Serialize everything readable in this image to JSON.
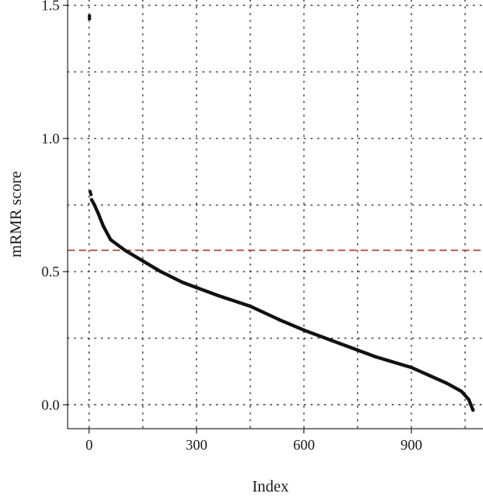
{
  "chart_data": {
    "type": "scatter",
    "title": "",
    "xlabel": "Index",
    "ylabel": "mRMR score",
    "xlim": [
      -60,
      1100
    ],
    "ylim": [
      -0.09,
      1.52
    ],
    "x_ticks": [
      0,
      300,
      600,
      900
    ],
    "x_tick_labels": [
      "0",
      "300",
      "600",
      "900"
    ],
    "y_ticks": [
      0.0,
      0.5,
      1.0,
      1.5
    ],
    "y_tick_labels": [
      "0.0",
      "0.5",
      "1.0",
      "1.5"
    ],
    "grid": true,
    "grid_x": [
      0,
      150,
      300,
      450,
      600,
      750,
      900,
      1050
    ],
    "grid_y": [
      0.0,
      0.25,
      0.5,
      0.75,
      1.0,
      1.25,
      1.5
    ],
    "threshold": 0.58,
    "colors": {
      "points": "#111111",
      "threshold": "#b03a2e",
      "grid": "#333333"
    },
    "outlier_points": [
      {
        "x": 1,
        "y": 1.46
      },
      {
        "x": 1,
        "y": 1.45
      },
      {
        "x": 3,
        "y": 0.8
      },
      {
        "x": 5,
        "y": 0.79
      }
    ],
    "curve_points": [
      {
        "x": 7,
        "y": 0.77
      },
      {
        "x": 15,
        "y": 0.75
      },
      {
        "x": 25,
        "y": 0.72
      },
      {
        "x": 40,
        "y": 0.67
      },
      {
        "x": 60,
        "y": 0.62
      },
      {
        "x": 80,
        "y": 0.6
      },
      {
        "x": 100,
        "y": 0.58
      },
      {
        "x": 150,
        "y": 0.54
      },
      {
        "x": 200,
        "y": 0.5
      },
      {
        "x": 260,
        "y": 0.46
      },
      {
        "x": 300,
        "y": 0.44
      },
      {
        "x": 360,
        "y": 0.41
      },
      {
        "x": 450,
        "y": 0.37
      },
      {
        "x": 530,
        "y": 0.32
      },
      {
        "x": 600,
        "y": 0.28
      },
      {
        "x": 700,
        "y": 0.23
      },
      {
        "x": 800,
        "y": 0.18
      },
      {
        "x": 900,
        "y": 0.14
      },
      {
        "x": 950,
        "y": 0.11
      },
      {
        "x": 1000,
        "y": 0.08
      },
      {
        "x": 1040,
        "y": 0.05
      },
      {
        "x": 1060,
        "y": 0.02
      },
      {
        "x": 1072,
        "y": -0.02
      }
    ]
  }
}
